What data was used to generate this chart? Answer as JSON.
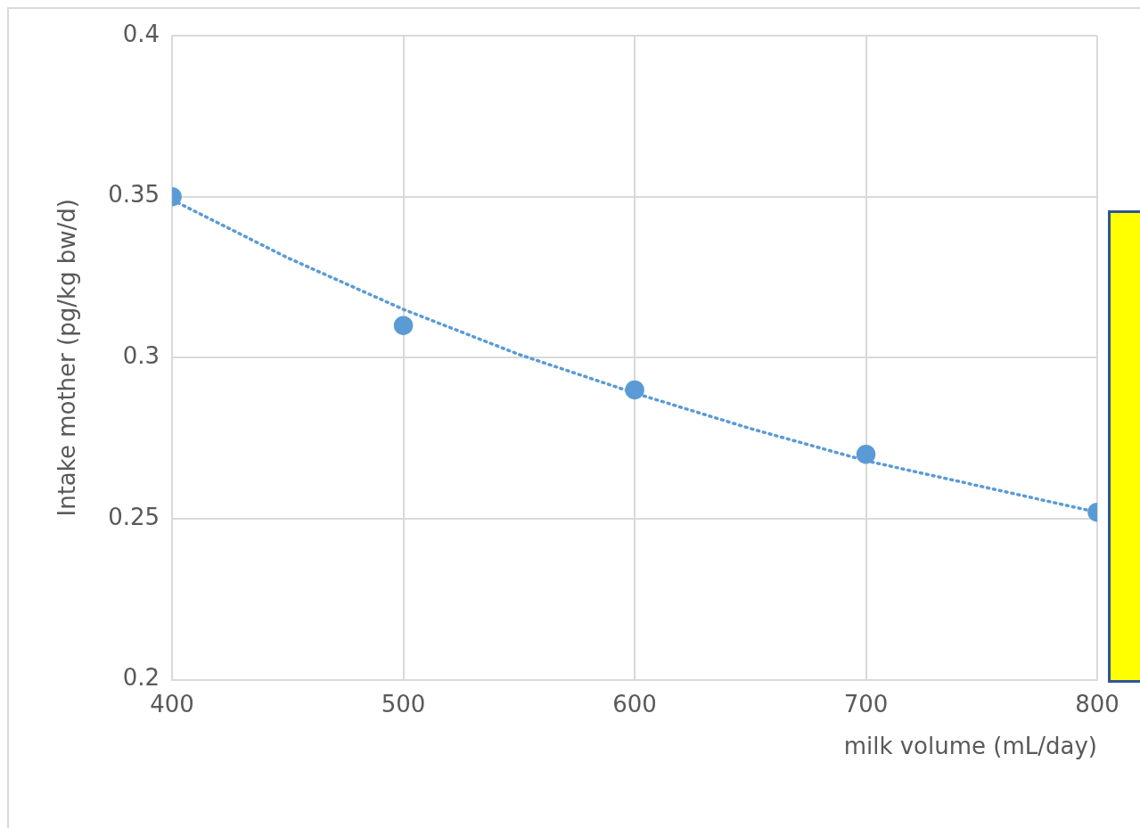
{
  "chart_data": {
    "type": "scatter",
    "xlabel": "milk volume (mL/day)",
    "ylabel": "Intake mother (pg/kg bw/d)",
    "x": [
      400,
      500,
      600,
      700,
      800
    ],
    "series": [
      {
        "type": "scatter",
        "color": "#5b9bd5",
        "marker": "circle",
        "values": [
          0.35,
          0.31,
          0.29,
          0.27,
          0.252
        ]
      },
      {
        "type": "line",
        "color": "#5b9bd5",
        "line_style": "dotted",
        "marker": "none",
        "x": [
          400,
          450,
          500,
          550,
          600,
          650,
          700,
          750,
          800
        ],
        "values": [
          0.349,
          0.331,
          0.315,
          0.301,
          0.289,
          0.278,
          0.268,
          0.26,
          0.252
        ]
      }
    ],
    "xlim": [
      400,
      800
    ],
    "xticks": [
      400,
      500,
      600,
      700,
      800
    ],
    "ylim": [
      0.2,
      0.4
    ],
    "yticks": [
      0.2,
      0.25,
      0.3,
      0.35,
      0.4
    ],
    "grid": true,
    "legend": false
  }
}
